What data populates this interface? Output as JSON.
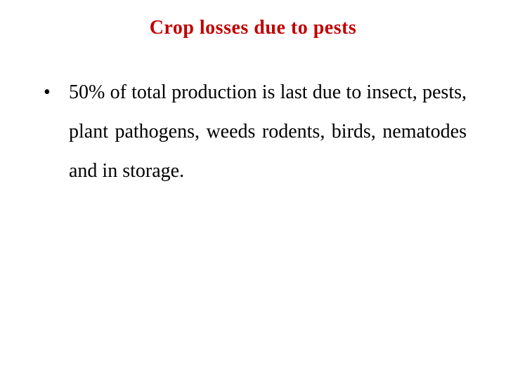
{
  "title": {
    "text": "Crop losses due to pests",
    "color": "#c00000",
    "font_family": "cursive",
    "font_size_pt": 28,
    "font_weight": "bold",
    "align": "center"
  },
  "bullets": [
    {
      "text": "50% of total production is last due to insect, pests, plant pathogens, weeds rodents, birds, nematodes and in storage.",
      "color": "#000000",
      "font_size_pt": 28,
      "font_family": "Times New Roman",
      "line_height": 2.0,
      "align": "justify"
    }
  ],
  "background_color": "#ffffff",
  "slide_width": 720,
  "slide_height": 540
}
